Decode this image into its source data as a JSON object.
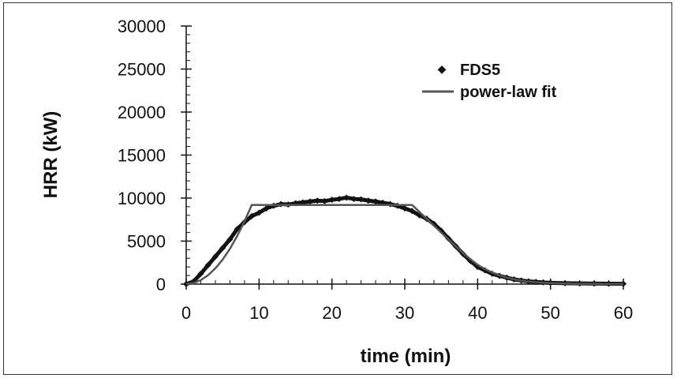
{
  "chart_data": {
    "type": "line",
    "xlabel": "time (min)",
    "ylabel": "HRR (kW)",
    "xlim": [
      0,
      60
    ],
    "ylim": [
      0,
      30000
    ],
    "xticks": [
      "0",
      "10",
      "20",
      "30",
      "40",
      "50",
      "60"
    ],
    "yticks": [
      "0",
      "5000",
      "10000",
      "15000",
      "20000",
      "25000",
      "30000"
    ],
    "legend_position": "top-right",
    "series": [
      {
        "name": "FDS5",
        "marker": "diamond",
        "color": "#111111",
        "x": [
          0,
          1,
          2,
          3,
          4,
          5,
          6,
          7,
          8,
          9,
          10,
          11,
          12,
          13,
          14,
          15,
          16,
          17,
          18,
          19,
          20,
          21,
          22,
          23,
          24,
          25,
          26,
          27,
          28,
          29,
          30,
          31,
          32,
          33,
          34,
          35,
          36,
          37,
          38,
          39,
          40,
          41,
          42,
          43,
          44,
          45,
          46,
          47,
          48,
          49,
          50,
          52,
          54,
          56,
          58,
          60
        ],
        "y": [
          0,
          300,
          1200,
          2200,
          3200,
          4200,
          5200,
          6400,
          7200,
          7900,
          8300,
          8800,
          9100,
          9300,
          9250,
          9400,
          9500,
          9600,
          9700,
          9650,
          9800,
          9900,
          10050,
          9900,
          9850,
          9700,
          9600,
          9450,
          9300,
          9100,
          8800,
          8500,
          8000,
          7600,
          7000,
          6200,
          5300,
          4400,
          3500,
          2700,
          2000,
          1600,
          1200,
          950,
          750,
          550,
          420,
          320,
          250,
          200,
          150,
          100,
          80,
          60,
          50,
          40
        ]
      },
      {
        "name": "power-law fit",
        "marker": "none",
        "color": "#555555",
        "x": [
          0,
          1,
          2,
          3,
          4,
          5,
          6,
          7,
          8,
          9,
          31,
          32,
          33,
          34,
          35,
          36,
          37,
          38,
          39,
          40,
          41,
          42,
          43,
          44,
          45,
          46,
          47,
          48,
          49,
          50,
          52,
          54,
          56,
          58,
          60
        ],
        "y": [
          0,
          110,
          460,
          1030,
          1830,
          2850,
          4110,
          5600,
          7300,
          9200,
          9200,
          8400,
          7600,
          6800,
          6000,
          5200,
          4400,
          3600,
          2900,
          2250,
          1750,
          1350,
          1000,
          750,
          550,
          400,
          300,
          220,
          160,
          120,
          70,
          40,
          20,
          10,
          5
        ]
      }
    ]
  }
}
